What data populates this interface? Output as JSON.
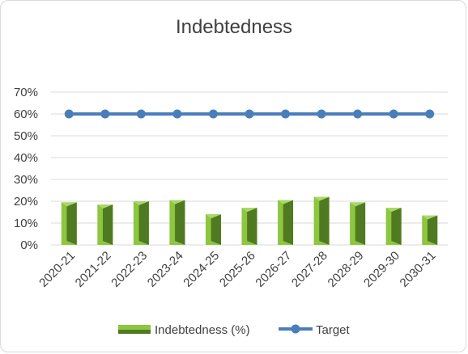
{
  "chart_data": {
    "type": "bar",
    "title": "Indebtedness",
    "categories": [
      "2020-21",
      "2021-22",
      "2022-23",
      "2023-24",
      "2024-25",
      "2025-26",
      "2026-27",
      "2027-28",
      "2028-29",
      "2029-30",
      "2030-31"
    ],
    "series": [
      {
        "name": "Indebtedness (%)",
        "type": "bar",
        "values": [
          19.5,
          18.5,
          20.0,
          20.5,
          14.0,
          17.0,
          20.5,
          22.0,
          19.5,
          17.0,
          13.5
        ]
      },
      {
        "name": "Target",
        "type": "line",
        "values": [
          60,
          60,
          60,
          60,
          60,
          60,
          60,
          60,
          60,
          60,
          60
        ]
      }
    ],
    "yticks": [
      "0%",
      "10%",
      "20%",
      "30%",
      "40%",
      "50%",
      "60%",
      "70%"
    ],
    "ylim": [
      0,
      70
    ],
    "grid": true,
    "legend": "bottom",
    "colors": {
      "bar_front": "#8dc63f",
      "bar_side": "#4f7a21",
      "line": "#4a7ebb",
      "grid": "#d9d9d9"
    }
  }
}
